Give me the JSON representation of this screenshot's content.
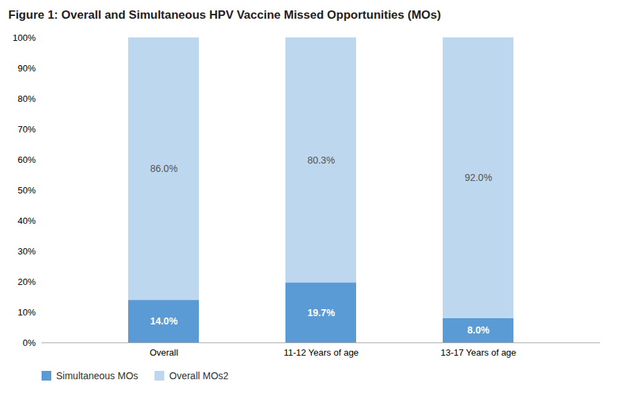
{
  "chart_data": {
    "type": "bar",
    "title": "Figure 1: Overall and Simultaneous HPV Vaccine Missed Opportunities (MOs)",
    "categories": [
      "Overall",
      "11-12 Years of age",
      "13-17 Years of age"
    ],
    "series": [
      {
        "name": "Simultaneous MOs",
        "color": "#5B9BD5",
        "values": [
          14.0,
          19.7,
          8.0
        ],
        "value_labels": [
          "14.0%",
          "19.7%",
          "8.0%"
        ]
      },
      {
        "name": "Overall MOs2",
        "color": "#BDD7EE",
        "values": [
          86.0,
          80.3,
          92.0
        ],
        "value_labels": [
          "86.0%",
          "80.3%",
          "92.0%"
        ]
      }
    ],
    "ylim": [
      0,
      100
    ],
    "yticks": [
      {
        "value": 0,
        "label": "0%"
      },
      {
        "value": 10,
        "label": "10%"
      },
      {
        "value": 20,
        "label": "20%"
      },
      {
        "value": 30,
        "label": "30%"
      },
      {
        "value": 40,
        "label": "40%"
      },
      {
        "value": 50,
        "label": "50%"
      },
      {
        "value": 60,
        "label": "60%"
      },
      {
        "value": 70,
        "label": "70%"
      },
      {
        "value": 80,
        "label": "80%"
      },
      {
        "value": 90,
        "label": "90%"
      },
      {
        "value": 100,
        "label": "100%"
      }
    ],
    "stacked": true,
    "data_labels": true,
    "grid": false,
    "legend": "lower left"
  }
}
